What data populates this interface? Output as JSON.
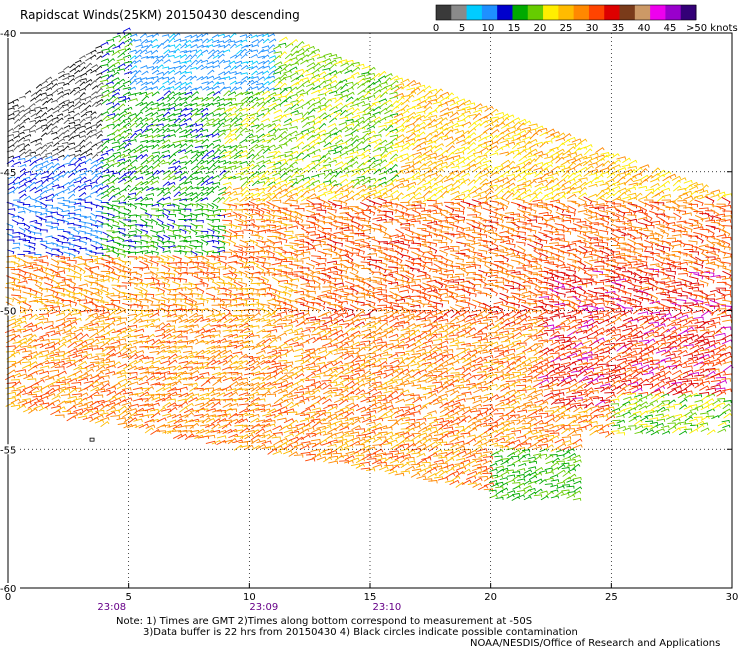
{
  "title": "Rapidscat Winds(25KM) 20150430 descending",
  "legend": {
    "tick_labels": [
      "0",
      "5",
      "10",
      "15",
      "20",
      "25",
      "30",
      "35",
      "40",
      "45",
      ">50 knots"
    ],
    "colors": [
      "#3a3a3a",
      "#8a8a8a",
      "#00ccff",
      "#1e90ff",
      "#0000cc",
      "#00aa00",
      "#66cc00",
      "#ffee00",
      "#ffbb00",
      "#ff8800",
      "#ff4400",
      "#dd0000",
      "#7a3b1a",
      "#cc9966",
      "#ee00ee",
      "#9900cc",
      "#330077"
    ]
  },
  "axes": {
    "lon_ticks": [
      0,
      5,
      10,
      15,
      20,
      25,
      30
    ],
    "lon_labels": [
      "0",
      "5",
      "10",
      "15",
      "20",
      "25",
      "30"
    ],
    "lat_ticks": [
      -40,
      -45,
      -50,
      -55,
      -60
    ],
    "lat_labels": [
      "-40",
      "-45",
      "-50",
      "-55",
      "-60"
    ],
    "lon_range": [
      0,
      30
    ],
    "lat_range": [
      -60,
      -40
    ],
    "grid": "dotted"
  },
  "times": [
    {
      "label": "23:08",
      "lon": 4.3
    },
    {
      "label": "23:09",
      "lon": 10.6
    },
    {
      "label": "23:10",
      "lon": 15.7
    }
  ],
  "notes": {
    "line1": "Note: 1) Times are GMT 2)Times along bottom correspond to measurement at -50S",
    "line2": "3)Data buffer is 22 hrs from 20150430 4) Black circles indicate possible contamination",
    "credit": "NOAA/NESDIS/Office of Research and Applications"
  },
  "chart_data": {
    "type": "wind_barbs",
    "units": "knots",
    "note": "Wind vector field; speed shown by color",
    "regions": [
      {
        "lon": [
          5,
          11
        ],
        "lat": [
          -40,
          -42
        ],
        "speed": 10
      },
      {
        "lon": [
          0,
          4
        ],
        "lat": [
          -43,
          -46
        ],
        "speed": 0
      },
      {
        "lon": [
          0,
          4
        ],
        "lat": [
          -45,
          -48
        ],
        "speed": 10
      },
      {
        "lon": [
          2,
          8
        ],
        "lat": [
          -46,
          -48
        ],
        "speed": 15
      },
      {
        "lon": [
          5,
          12
        ],
        "lat": [
          -44,
          -46
        ],
        "speed": 20
      },
      {
        "lon": [
          10,
          20
        ],
        "lat": [
          -46,
          -48
        ],
        "speed": 25
      },
      {
        "lon": [
          14,
          24
        ],
        "lat": [
          -47,
          -50
        ],
        "speed": 30
      },
      {
        "lon": [
          0,
          8
        ],
        "lat": [
          -49,
          -54
        ],
        "speed": 25
      },
      {
        "lon": [
          8,
          22
        ],
        "lat": [
          -50,
          -56
        ],
        "speed": 30
      },
      {
        "lon": [
          20,
          24
        ],
        "lat": [
          -55,
          -57
        ],
        "speed": 20
      },
      {
        "lon": [
          22,
          30
        ],
        "lat": [
          -49,
          -53
        ],
        "speed": 35
      },
      {
        "lon": [
          25,
          30
        ],
        "lat": [
          -53,
          -55
        ],
        "speed": 20
      }
    ]
  }
}
